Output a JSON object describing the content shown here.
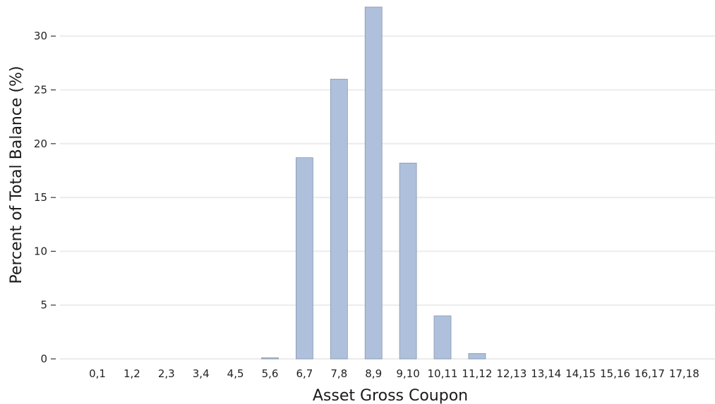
{
  "chart_data": {
    "type": "bar",
    "title": "",
    "xlabel": "Asset Gross Coupon",
    "ylabel": "Percent of Total Balance (%)",
    "categories": [
      "0,1",
      "1,2",
      "2,3",
      "3,4",
      "4,5",
      "5,6",
      "6,7",
      "7,8",
      "8,9",
      "9,10",
      "10,11",
      "11,12",
      "12,13",
      "13,14",
      "14,15",
      "15,16",
      "16,17",
      "17,18"
    ],
    "values": [
      0,
      0,
      0,
      0,
      0,
      0.1,
      18.7,
      26.0,
      32.7,
      18.2,
      4.0,
      0.5,
      0,
      0,
      0,
      0,
      0,
      0
    ],
    "ylim": [
      0,
      32.7
    ],
    "yticks": [
      0,
      5,
      10,
      15,
      20,
      25,
      30
    ],
    "grid": "horizontal",
    "bar_color": "#aec0dc",
    "bar_edge_color": "#8796ad",
    "grid_color": "#ececec"
  }
}
